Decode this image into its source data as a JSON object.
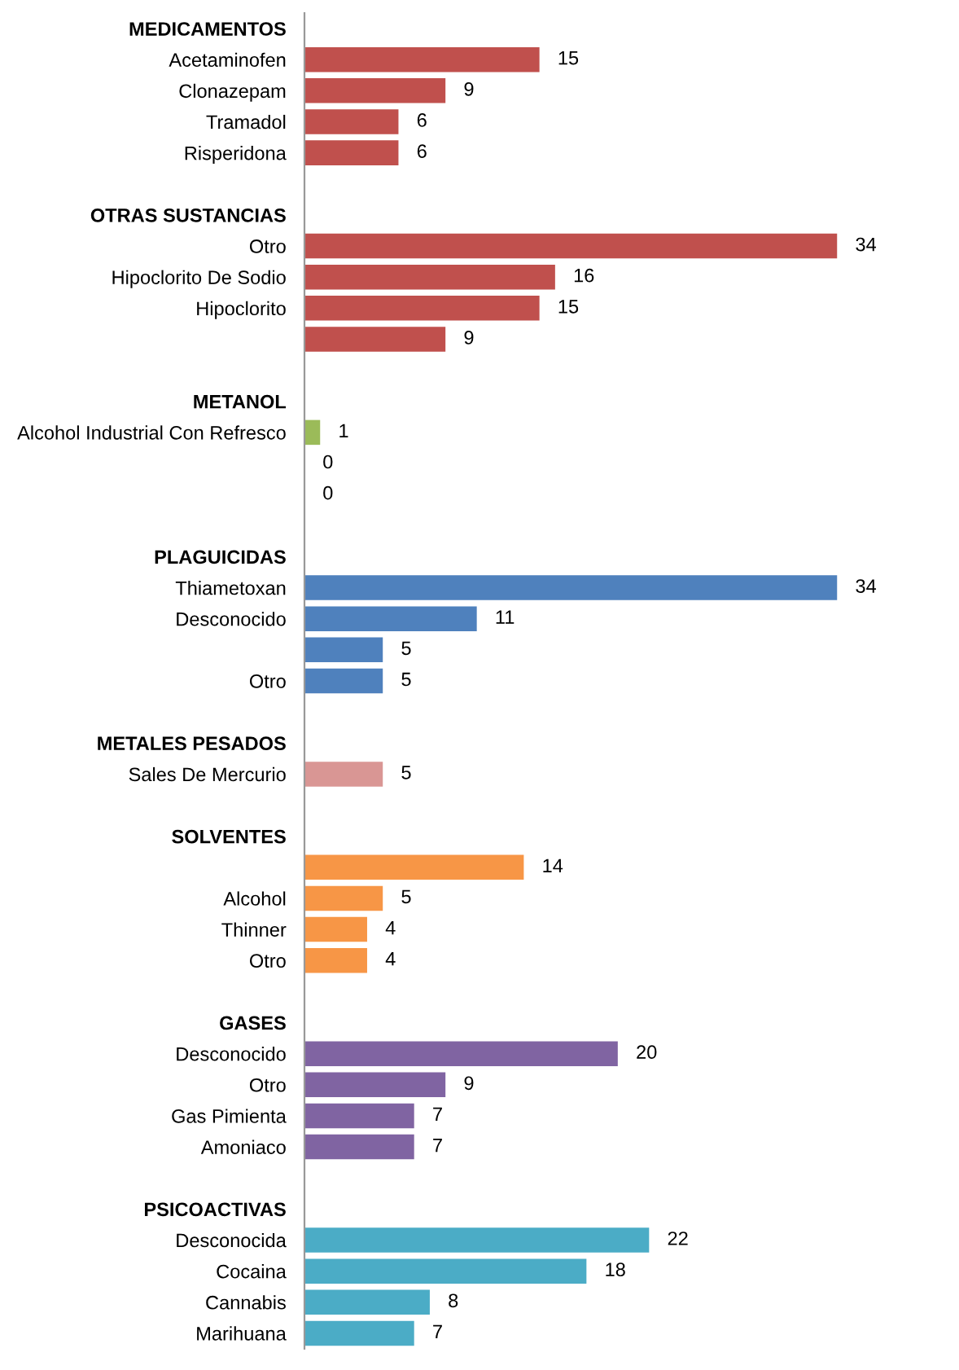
{
  "chart_data": {
    "type": "bar",
    "orientation": "horizontal",
    "categories": [
      "MEDICAMENTOS",
      "Acetaminofen",
      "Clonazepam",
      "Tramadol",
      "Risperidona",
      null,
      "OTRAS SUSTANCIAS",
      "Otro",
      "Hipoclorito De Sodio",
      "Hipoclorito",
      null,
      null,
      "METANOL",
      "Alcohol Industrial Con Refresco",
      null,
      null,
      null,
      "PLAGUICIDAS",
      "Thiametoxan",
      "Desconocido",
      null,
      "Otro",
      null,
      "METALES PESADOS",
      "Sales De Mercurio",
      null,
      "SOLVENTES",
      null,
      "Alcohol",
      "Thinner",
      "Otro",
      null,
      "GASES",
      "Desconocido",
      "Otro",
      "Gas Pimienta",
      "Amoniaco",
      null,
      "PSICOACTIVAS",
      "Desconocida",
      "Cocaina",
      "Cannabis",
      "Marihuana"
    ],
    "values": [
      null,
      15,
      9,
      6,
      6,
      null,
      null,
      34,
      16,
      15,
      9,
      null,
      null,
      1,
      0,
      0,
      null,
      null,
      34,
      11,
      5,
      5,
      null,
      null,
      5,
      null,
      null,
      14,
      5,
      4,
      4,
      null,
      null,
      20,
      9,
      7,
      7,
      null,
      null,
      22,
      18,
      8,
      7
    ],
    "colors": [
      "#c0504d",
      "#c0504d",
      "#c0504d",
      "#c0504d",
      "#c0504d",
      "#c0504d",
      "#c0504d",
      "#c0504d",
      "#c0504d",
      "#c0504d",
      "#c0504d",
      "#c0504d",
      "#9bbb59",
      "#9bbb59",
      "#9bbb59",
      "#9bbb59",
      "#9bbb59",
      "#4f81bd",
      "#4f81bd",
      "#4f81bd",
      "#4f81bd",
      "#4f81bd",
      "#4f81bd",
      "#d99694",
      "#d99694",
      "#d99694",
      "#f79646",
      "#f79646",
      "#f79646",
      "#f79646",
      "#f79646",
      "#f79646",
      "#8064a2",
      "#8064a2",
      "#8064a2",
      "#8064a2",
      "#8064a2",
      "#8064a2",
      "#4bacc6",
      "#4bacc6",
      "#4bacc6",
      "#4bacc6",
      "#4bacc6"
    ],
    "data_labels": true,
    "grid": false,
    "legend": false
  }
}
